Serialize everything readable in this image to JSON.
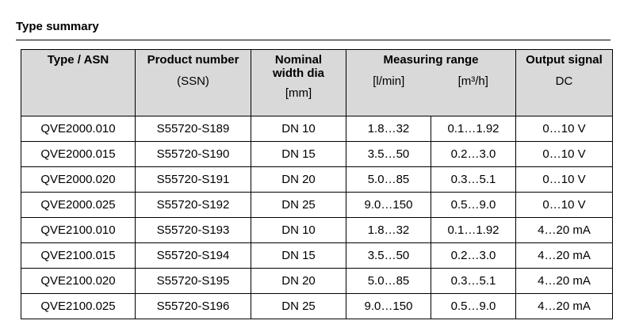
{
  "heading": "Type summary",
  "table": {
    "header": {
      "type": "Type / ASN",
      "product": "Product number",
      "product_sub": "(SSN)",
      "nominal": "Nominal width dia",
      "nominal_unit": "[mm]",
      "range": "Measuring range",
      "range_lmin": "[l/min]",
      "range_m3h": "[m³/h]",
      "output": "Output signal",
      "output_sub": "DC"
    },
    "rows": [
      [
        "QVE2000.010",
        "S55720-S189",
        "DN 10",
        "1.8…32",
        "0.1…1.92",
        "0…10 V"
      ],
      [
        "QVE2000.015",
        "S55720-S190",
        "DN 15",
        "3.5…50",
        "0.2…3.0",
        "0…10 V"
      ],
      [
        "QVE2000.020",
        "S55720-S191",
        "DN 20",
        "5.0…85",
        "0.3…5.1",
        "0…10 V"
      ],
      [
        "QVE2000.025",
        "S55720-S192",
        "DN 25",
        "9.0…150",
        "0.5…9.0",
        "0…10 V"
      ],
      [
        "QVE2100.010",
        "S55720-S193",
        "DN 10",
        "1.8…32",
        "0.1…1.92",
        "4…20 mA"
      ],
      [
        "QVE2100.015",
        "S55720-S194",
        "DN 15",
        "3.5…50",
        "0.2…3.0",
        "4…20 mA"
      ],
      [
        "QVE2100.020",
        "S55720-S195",
        "DN 20",
        "5.0…85",
        "0.3…5.1",
        "4…20 mA"
      ],
      [
        "QVE2100.025",
        "S55720-S196",
        "DN 25",
        "9.0…150",
        "0.5…9.0",
        "4…20 mA"
      ]
    ]
  }
}
